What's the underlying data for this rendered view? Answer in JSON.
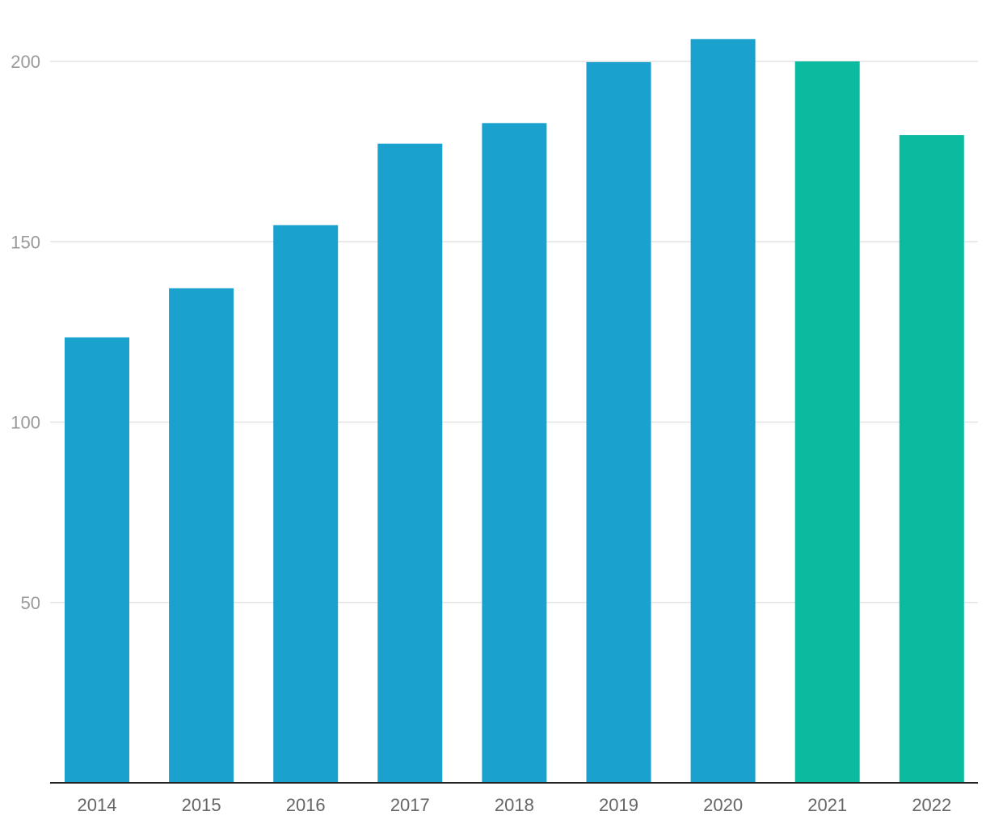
{
  "chart_data": {
    "type": "bar",
    "title": "",
    "xlabel": "",
    "ylabel": "",
    "categories": [
      "2014",
      "2015",
      "2016",
      "2017",
      "2018",
      "2019",
      "2020",
      "2021",
      "2022"
    ],
    "values": [
      123.5,
      137.1,
      154.6,
      177.2,
      182.9,
      199.8,
      206.2,
      200.0,
      179.6
    ],
    "bar_colors": [
      "#1aa1cd",
      "#1aa1cd",
      "#1aa1cd",
      "#1aa1cd",
      "#1aa1cd",
      "#1aa1cd",
      "#1aa1cd",
      "#0abba0",
      "#0abba0"
    ],
    "ylim": [
      0,
      210
    ],
    "yticks": [
      50,
      100,
      150,
      200
    ],
    "grid": true,
    "legend": "none"
  }
}
